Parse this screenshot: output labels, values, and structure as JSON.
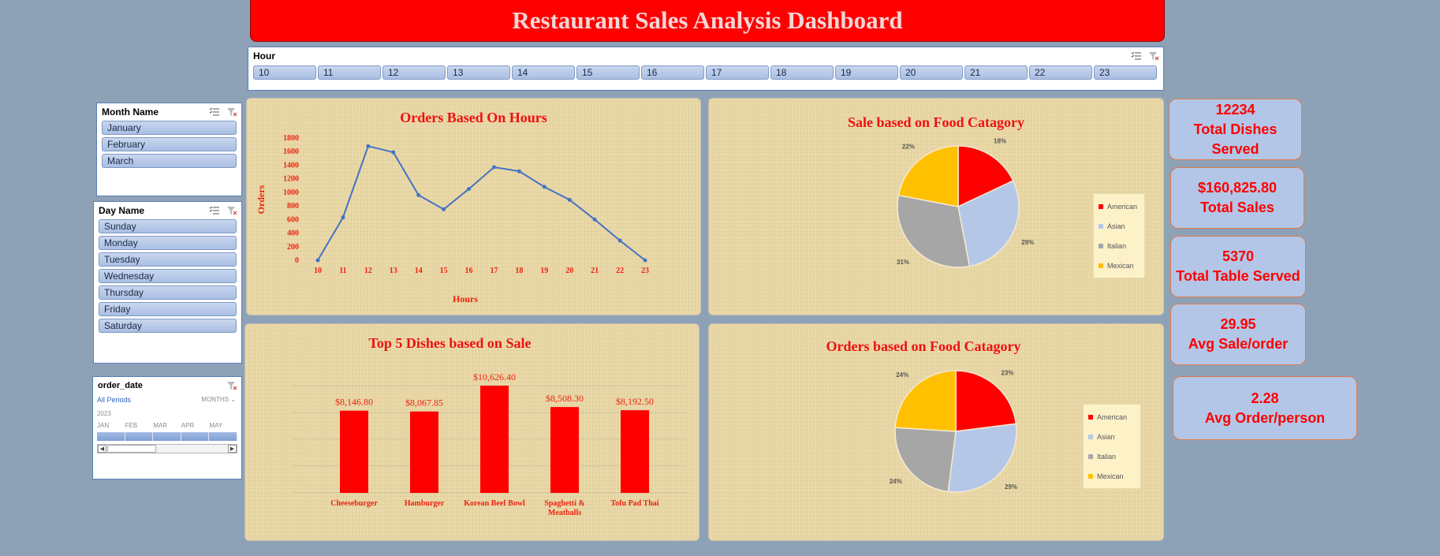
{
  "title": "Restaurant Sales Analysis Dashboard",
  "hour_slicer": {
    "title": "Hour",
    "items": [
      "10",
      "11",
      "12",
      "13",
      "14",
      "15",
      "16",
      "17",
      "18",
      "19",
      "20",
      "21",
      "22",
      "23"
    ]
  },
  "month_slicer": {
    "title": "Month Name",
    "items": [
      "January",
      "February",
      "March"
    ]
  },
  "day_slicer": {
    "title": "Day Name",
    "items": [
      "Sunday",
      "Monday",
      "Tuesday",
      "Wednesday",
      "Thursday",
      "Friday",
      "Saturday"
    ]
  },
  "timeline": {
    "title": "order_date",
    "all_periods": "All Periods",
    "level": "MONTHS ⌄",
    "year": "2023",
    "months": [
      "JAN",
      "FEB",
      "MAR",
      "APR",
      "MAY"
    ]
  },
  "kpis": [
    {
      "value": "12234",
      "label": "Total Dishes Served"
    },
    {
      "value": "$160,825.80",
      "label": "Total Sales"
    },
    {
      "value": "5370",
      "label": "Total Table Served"
    },
    {
      "value": "29.95",
      "label": "Avg Sale/order"
    },
    {
      "value": "2.28",
      "label": "Avg Order/person"
    }
  ],
  "colors": {
    "american": "#ff0000",
    "asian": "#b4c7e7",
    "italian": "#a6a6a6",
    "mexican": "#ffc000",
    "line": "#4472c4",
    "bar": "#ff0000"
  },
  "chart_data": [
    {
      "type": "line",
      "title": "Orders Based On Hours",
      "xlabel": "Hours",
      "ylabel": "Orders",
      "x": [
        10,
        11,
        12,
        13,
        14,
        15,
        16,
        17,
        18,
        19,
        20,
        21,
        22,
        23
      ],
      "y": [
        0,
        630,
        1680,
        1590,
        960,
        750,
        1050,
        1370,
        1310,
        1080,
        890,
        600,
        290,
        0
      ],
      "yticks": [
        0,
        200,
        400,
        600,
        800,
        1000,
        1200,
        1400,
        1600,
        1800
      ],
      "ylim": [
        0,
        1800
      ]
    },
    {
      "type": "pie",
      "title": "Sale based on Food Catagory",
      "labels": [
        "American",
        "Asian",
        "Italian",
        "Mexican"
      ],
      "values": [
        18,
        29,
        31,
        22
      ],
      "value_labels": [
        "18%",
        "29%",
        "31%",
        "22%"
      ],
      "legend": "right"
    },
    {
      "type": "bar",
      "title": "Top 5 Dishes based on Sale",
      "categories": [
        "Cheeseburger",
        "Hamburger",
        "Korean Beef Bowl",
        "Spaghetti & Meatballs",
        "Tofu Pad Thai"
      ],
      "values": [
        8146.8,
        8067.85,
        10626.4,
        8508.3,
        8192.5
      ],
      "value_labels": [
        "$8,146.80",
        "$8,067.85",
        "$10,626.40",
        "$8,508.30",
        "$8,192.50"
      ]
    },
    {
      "type": "pie",
      "title": "Orders based on Food Catagory",
      "labels": [
        "American",
        "Asian",
        "Italian",
        "Mexican"
      ],
      "values": [
        23,
        29,
        24,
        24
      ],
      "value_labels": [
        "23%",
        "29%",
        "24%",
        "24%"
      ],
      "legend": "right"
    }
  ]
}
